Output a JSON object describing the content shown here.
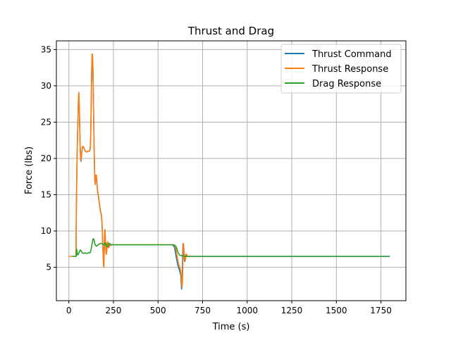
{
  "chart_data": {
    "type": "line",
    "title": "Thrust and Drag",
    "xlabel": "Time (s)",
    "ylabel": "Force (lbs)",
    "xlim": [
      -70,
      1890
    ],
    "ylim": [
      0.4,
      36.2
    ],
    "xticks": [
      0,
      250,
      500,
      750,
      1000,
      1250,
      1500,
      1750
    ],
    "yticks": [
      5,
      10,
      15,
      20,
      25,
      30,
      35
    ],
    "grid": true,
    "legend_position": "top-right",
    "series": [
      {
        "name": "Thrust Command",
        "color": "#1f77b4",
        "x": [
          40,
          42,
          44,
          46,
          48,
          50,
          52,
          54,
          56,
          58,
          60,
          62,
          64,
          66,
          68,
          70,
          72,
          74,
          76,
          78,
          80,
          84,
          88,
          92,
          96,
          100,
          104,
          108,
          112,
          116,
          120,
          122,
          124,
          126,
          128,
          130,
          132,
          134,
          136,
          138,
          140,
          142,
          144,
          146,
          148,
          150,
          152,
          154,
          156,
          158,
          160,
          162,
          164,
          166,
          168,
          170,
          172,
          174,
          176,
          178,
          180,
          182,
          184,
          186,
          188,
          190,
          192,
          194,
          196,
          198,
          200,
          202,
          204,
          206,
          208,
          210,
          212,
          214,
          216,
          218,
          220,
          222,
          224,
          226,
          228,
          230,
          232,
          234,
          236,
          238,
          240,
          244,
          248,
          252,
          256,
          260,
          270,
          300,
          400,
          500,
          580,
          590,
          595,
          600,
          605,
          610,
          615,
          620,
          625,
          628,
          630,
          632,
          634,
          636,
          638,
          640,
          642,
          644,
          646,
          648,
          650,
          652,
          654,
          656,
          658,
          660,
          662,
          664,
          666,
          668,
          670,
          672,
          674,
          676,
          678,
          680,
          685,
          690,
          695,
          700,
          800,
          1000,
          1500,
          1800
        ],
        "y": [
          6.5,
          13.0,
          17.0,
          20.0,
          22.5,
          24.5,
          26.5,
          28.5,
          29.0,
          27.5,
          25.5,
          23.0,
          21.0,
          19.8,
          19.6,
          20.0,
          20.7,
          21.2,
          21.5,
          21.6,
          21.6,
          21.5,
          21.2,
          21.0,
          20.9,
          20.9,
          20.9,
          21.0,
          21.0,
          21.0,
          21.3,
          22.5,
          25.0,
          28.5,
          32.0,
          34.2,
          34.3,
          33.5,
          31.0,
          27.5,
          24.0,
          21.0,
          18.5,
          16.8,
          16.5,
          17.2,
          17.6,
          17.6,
          17.2,
          16.5,
          15.8,
          15.3,
          15.0,
          14.7,
          14.3,
          14.0,
          13.6,
          13.2,
          12.9,
          12.6,
          12.5,
          12.2,
          11.7,
          11.0,
          9.7,
          8.2,
          6.8,
          5.5,
          5.0,
          7.0,
          9.5,
          10.2,
          9.3,
          8.0,
          7.0,
          6.8,
          7.2,
          7.9,
          8.4,
          8.4,
          8.0,
          7.7,
          7.8,
          8.1,
          8.3,
          8.2,
          8.0,
          8.0,
          8.1,
          8.1,
          8.1,
          8.1,
          8.1,
          8.1,
          8.1,
          8.1,
          8.1,
          8.1,
          8.1,
          8.1,
          8.1,
          7.9,
          7.4,
          6.7,
          6.0,
          5.4,
          5.0,
          4.6,
          4.2,
          3.8,
          2.9,
          2.0,
          2.5,
          4.0,
          6.5,
          8.2,
          7.9,
          7.2,
          6.6,
          6.0,
          5.8,
          6.0,
          6.4,
          6.7,
          6.8,
          6.7,
          6.6,
          6.5,
          6.5,
          6.5,
          6.5,
          6.5,
          6.5,
          6.5,
          6.5,
          6.5,
          6.5,
          6.5,
          6.5,
          6.5,
          6.5,
          6.5,
          6.5,
          6.5
        ]
      },
      {
        "name": "Thrust Response",
        "color": "#ff7f0e",
        "x": [
          0,
          40,
          42,
          44,
          46,
          48,
          50,
          52,
          54,
          56,
          58,
          60,
          62,
          64,
          66,
          68,
          70,
          72,
          74,
          76,
          78,
          80,
          84,
          88,
          92,
          96,
          100,
          104,
          108,
          112,
          116,
          120,
          122,
          124,
          126,
          128,
          130,
          132,
          134,
          136,
          138,
          140,
          142,
          144,
          146,
          148,
          150,
          152,
          154,
          156,
          158,
          160,
          162,
          164,
          166,
          168,
          170,
          172,
          174,
          176,
          178,
          180,
          182,
          184,
          186,
          188,
          190,
          192,
          194,
          196,
          198,
          200,
          202,
          204,
          206,
          208,
          210,
          212,
          214,
          216,
          218,
          220,
          222,
          224,
          226,
          228,
          230,
          232,
          234,
          236,
          238,
          240,
          244,
          248,
          252,
          256,
          260,
          270,
          300,
          400,
          500,
          580,
          590,
          595,
          600,
          605,
          610,
          615,
          620,
          625,
          628,
          630,
          632,
          634,
          636,
          638,
          640,
          642,
          644,
          646,
          648,
          650,
          652,
          654,
          656,
          658,
          660,
          662,
          664,
          666,
          668,
          670,
          672,
          674,
          676,
          678,
          680,
          685,
          690,
          695,
          700
        ],
        "y": [
          6.5,
          6.5,
          12.8,
          16.8,
          19.8,
          22.3,
          24.3,
          26.3,
          28.3,
          29.1,
          27.7,
          25.7,
          23.2,
          21.1,
          19.9,
          19.7,
          20.1,
          20.8,
          21.3,
          21.6,
          21.7,
          21.6,
          21.5,
          21.2,
          21.0,
          20.9,
          20.9,
          20.9,
          21.0,
          21.0,
          21.0,
          21.4,
          22.6,
          25.2,
          28.7,
          32.2,
          34.4,
          34.4,
          33.6,
          31.2,
          27.7,
          24.2,
          21.2,
          18.7,
          16.9,
          16.4,
          17.1,
          17.7,
          17.7,
          17.3,
          16.6,
          15.9,
          15.4,
          15.1,
          14.8,
          14.4,
          14.1,
          13.7,
          13.3,
          13.0,
          12.7,
          12.5,
          12.3,
          11.8,
          11.1,
          9.8,
          8.3,
          6.9,
          5.6,
          5.0,
          6.9,
          9.4,
          10.2,
          9.4,
          8.1,
          7.1,
          6.8,
          7.1,
          7.8,
          8.4,
          8.5,
          8.1,
          7.7,
          7.7,
          8.0,
          8.3,
          8.2,
          8.1,
          8.0,
          8.1,
          8.1,
          8.1,
          8.1,
          8.1,
          8.1,
          8.1,
          8.1,
          8.1,
          8.1,
          8.1,
          8.1,
          8.1,
          8.1,
          7.9,
          7.5,
          6.8,
          6.1,
          5.5,
          5.1,
          4.7,
          4.3,
          3.9,
          3.1,
          2.3,
          2.5,
          3.9,
          6.3,
          8.3,
          8.0,
          7.3,
          6.7,
          6.1,
          5.9,
          6.0,
          6.4,
          6.7,
          6.8,
          6.7,
          6.6,
          6.5,
          6.5,
          6.5,
          6.5,
          6.5,
          6.5,
          6.5,
          6.5,
          6.5,
          6.5,
          6.5,
          6.5
        ]
      },
      {
        "name": "Drag Response",
        "color": "#2ca02c",
        "x": [
          20,
          40,
          42,
          44,
          46,
          48,
          50,
          55,
          60,
          65,
          70,
          75,
          80,
          90,
          100,
          110,
          120,
          125,
          130,
          135,
          140,
          145,
          150,
          155,
          160,
          170,
          180,
          190,
          200,
          205,
          210,
          215,
          220,
          225,
          230,
          240,
          250,
          260,
          300,
          400,
          500,
          580,
          590,
          600,
          605,
          610,
          615,
          620,
          630,
          640,
          650,
          660,
          700,
          800,
          1000,
          1200,
          1500,
          1800
        ],
        "y": [
          6.5,
          6.5,
          6.6,
          7.5,
          7.1,
          6.8,
          6.7,
          6.9,
          7.2,
          7.4,
          7.2,
          7.0,
          6.9,
          7.0,
          6.9,
          7.0,
          7.0,
          7.5,
          8.2,
          8.9,
          8.9,
          8.3,
          8.0,
          7.9,
          8.0,
          8.2,
          8.3,
          8.2,
          8.1,
          8.4,
          8.2,
          7.8,
          7.9,
          8.3,
          8.2,
          8.1,
          8.1,
          8.1,
          8.1,
          8.1,
          8.1,
          8.1,
          8.1,
          7.9,
          7.6,
          7.2,
          6.9,
          6.7,
          6.6,
          6.6,
          6.5,
          6.5,
          6.5,
          6.5,
          6.5,
          6.5,
          6.5,
          6.5
        ]
      }
    ]
  }
}
